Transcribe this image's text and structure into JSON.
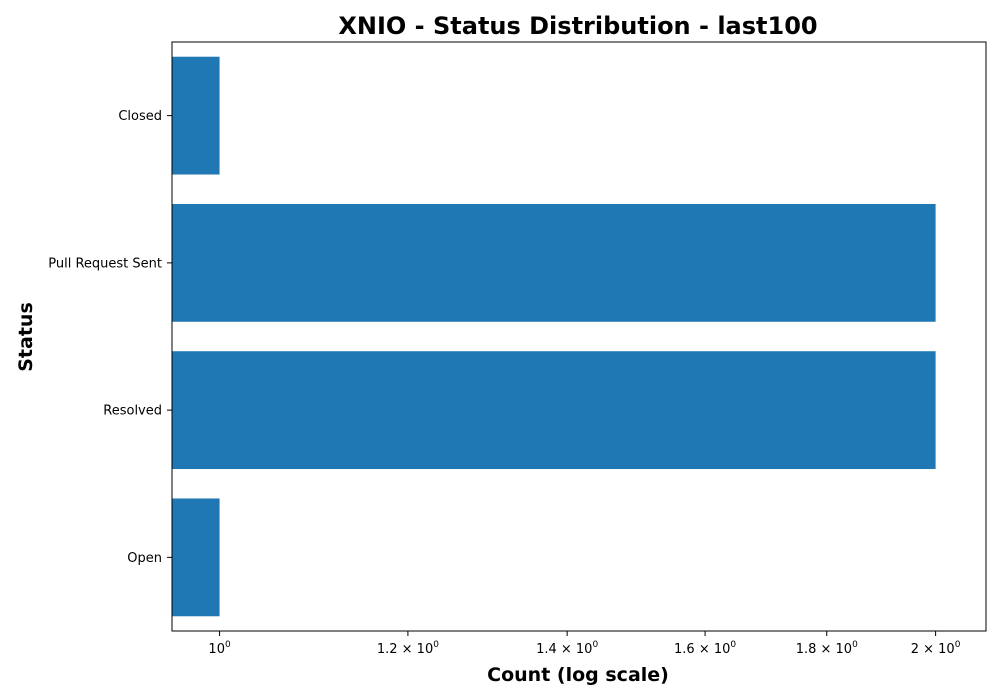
{
  "chart_data": {
    "type": "bar",
    "orientation": "horizontal",
    "title": "XNIO - Status Distribution - last100",
    "xlabel": "Count (log scale)",
    "ylabel": "Status",
    "xscale": "log",
    "xlim": [
      0.955,
      2.1
    ],
    "categories": [
      "Open",
      "Resolved",
      "Pull Request Sent",
      "Closed"
    ],
    "values": [
      1,
      2,
      2,
      1
    ],
    "x_ticks": [
      {
        "value": 1.0,
        "base": "10",
        "exp": "0"
      },
      {
        "value": 1.2,
        "base": "1.2 × 10",
        "exp": "0"
      },
      {
        "value": 1.4,
        "base": "1.4 × 10",
        "exp": "0"
      },
      {
        "value": 1.6,
        "base": "1.6 × 10",
        "exp": "0"
      },
      {
        "value": 1.8,
        "base": "1.8 × 10",
        "exp": "0"
      },
      {
        "value": 2.0,
        "base": "2 × 10",
        "exp": "0"
      }
    ],
    "grid": false,
    "legend": "none",
    "bar_color": "#1f77b4"
  }
}
